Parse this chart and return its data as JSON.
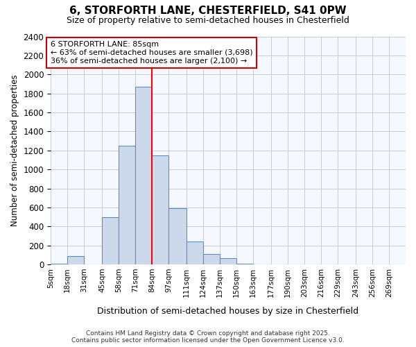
{
  "title": "6, STORFORTH LANE, CHESTERFIELD, S41 0PW",
  "subtitle": "Size of property relative to semi-detached houses in Chesterfield",
  "xlabel": "Distribution of semi-detached houses by size in Chesterfield",
  "ylabel": "Number of semi-detached properties",
  "bin_edges": [
    5,
    18,
    31,
    45,
    58,
    71,
    84,
    97,
    111,
    124,
    137,
    150,
    163,
    177,
    190,
    203,
    216,
    229,
    243,
    256,
    269,
    282
  ],
  "bin_labels": [
    "5sqm",
    "18sqm",
    "31sqm",
    "45sqm",
    "58sqm",
    "71sqm",
    "84sqm",
    "97sqm",
    "111sqm",
    "124sqm",
    "137sqm",
    "150sqm",
    "163sqm",
    "177sqm",
    "190sqm",
    "203sqm",
    "216sqm",
    "229sqm",
    "243sqm",
    "256sqm",
    "269sqm"
  ],
  "bar_heights": [
    10,
    90,
    0,
    500,
    1250,
    1870,
    1150,
    590,
    245,
    110,
    65,
    10,
    0,
    0,
    0,
    0,
    0,
    0,
    0,
    0,
    0
  ],
  "bar_color": "#ccd9ea",
  "bar_edge_color": "#5b8dc8",
  "red_line_x": 84,
  "ylim": [
    0,
    2400
  ],
  "yticks": [
    0,
    200,
    400,
    600,
    800,
    1000,
    1200,
    1400,
    1600,
    1800,
    2000,
    2200,
    2400
  ],
  "annotation_title": "6 STORFORTH LANE: 85sqm",
  "annotation_line1": "← 63% of semi-detached houses are smaller (3,698)",
  "annotation_line2": "36% of semi-detached houses are larger (2,100) →",
  "annotation_box_color": "#ffffff",
  "annotation_box_edge": "#cc0000",
  "footnote1": "Contains HM Land Registry data © Crown copyright and database right 2025.",
  "footnote2": "Contains public sector information licensed under the Open Government Licence v3.0.",
  "bg_color": "#ffffff",
  "plot_bg_color": "#f5f8ff"
}
